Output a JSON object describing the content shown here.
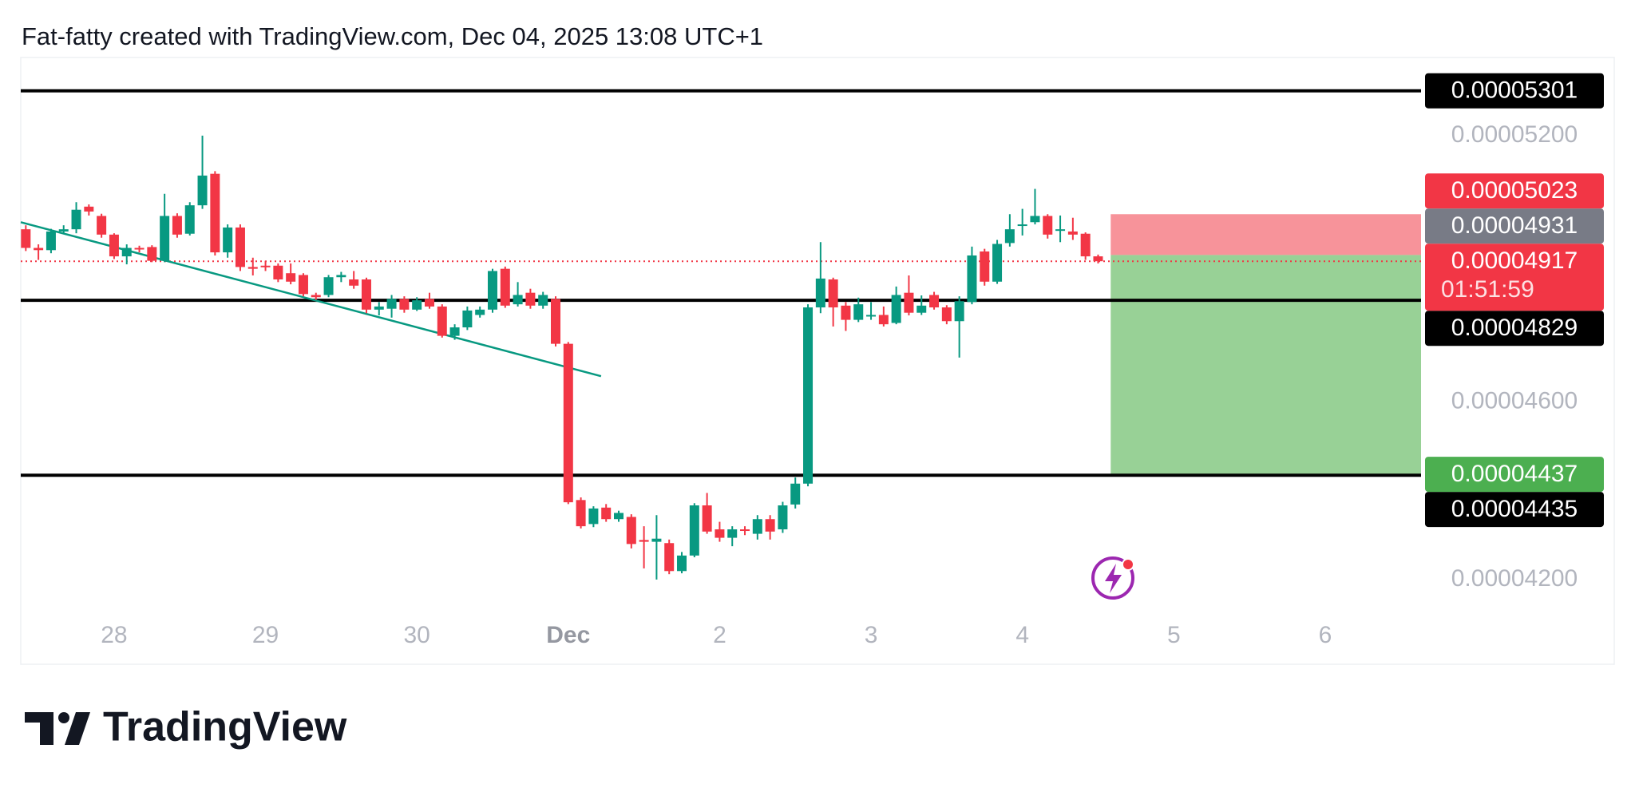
{
  "chart_data": {
    "type": "candlestick",
    "title": "Fat-fatty created with TradingView.com, Dec 04, 2025 13:08 UTC+1",
    "up_color": "#089981",
    "down_color": "#f23645",
    "candles": {
      "open": [
        4.989e-05,
        4.947e-05,
        4.942e-05,
        4.984e-05,
        4.989e-05,
        5.04e-05,
        5.019e-05,
        4.977e-05,
        4.928e-05,
        4.947e-05,
        4.949e-05,
        4.918e-05,
        5.019e-05,
        4.979e-05,
        5.043e-05,
        5.114e-05,
        4.937e-05,
        4.993e-05,
        4.904e-05,
        4.907e-05,
        4.907e-05,
        4.89e-05,
        4.886e-05,
        4.841e-05,
        4.841e-05,
        4.881e-05,
        4.876e-05,
        4.876e-05,
        4.808e-05,
        4.81e-05,
        4.832e-05,
        4.808e-05,
        4.832e-05,
        4.815e-05,
        4.749e-05,
        4.768e-05,
        4.796e-05,
        4.808e-05,
        4.9e-05,
        4.82e-05,
        4.846e-05,
        4.817e-05,
        4.832e-05,
        4.731e-05,
        4.379e-05,
        4.325e-05,
        4.362e-05,
        4.336e-05,
        4.341e-05,
        4.289e-05,
        4.285e-05,
        4.282e-05,
        4.219e-05,
        4.254e-05,
        4.367e-05,
        4.313e-05,
        4.294e-05,
        4.313e-05,
        4.303e-05,
        4.336e-05,
        4.313e-05,
        4.369e-05,
        4.416e-05,
        4.813e-05,
        4.876e-05,
        4.817e-05,
        4.785e-05,
        4.794e-05,
        4.796e-05,
        4.778e-05,
        4.846e-05,
        4.801e-05,
        4.841e-05,
        4.813e-05,
        4.782e-05,
        4.825e-05,
        4.939e-05,
        4.871e-05,
        4.958e-05,
        4.998e-05,
        5.005e-05,
        5.019e-05,
        4.989e-05,
        4.984e-05,
        4.979e-05,
        4.928e-05
      ],
      "high": [
        4.998e-05,
        4.955e-05,
        4.99e-05,
        4.998e-05,
        5.05e-05,
        5.045e-05,
        5.024e-05,
        4.98e-05,
        4.955e-05,
        4.952e-05,
        4.953e-05,
        5.069e-05,
        5.025e-05,
        5.05e-05,
        5.2e-05,
        5.12e-05,
        5e-05,
        5e-05,
        4.925e-05,
        4.918e-05,
        4.912e-05,
        4.912e-05,
        4.89e-05,
        4.846e-05,
        4.886e-05,
        4.893e-05,
        4.895e-05,
        4.88e-05,
        4.825e-05,
        4.841e-05,
        4.838e-05,
        4.836e-05,
        4.846e-05,
        4.82e-05,
        4.775e-05,
        4.815e-05,
        4.815e-05,
        4.9e-05,
        4.905e-05,
        4.87e-05,
        4.855e-05,
        4.848e-05,
        4.838e-05,
        4.735e-05,
        4.385e-05,
        4.365e-05,
        4.37e-05,
        4.355e-05,
        4.347e-05,
        4.32e-05,
        4.345e-05,
        4.29e-05,
        4.262e-05,
        4.372e-05,
        4.395e-05,
        4.33e-05,
        4.32e-05,
        4.32e-05,
        4.345e-05,
        4.345e-05,
        4.375e-05,
        4.43e-05,
        4.82e-05,
        4.96e-05,
        4.88e-05,
        4.825e-05,
        4.835e-05,
        4.825e-05,
        4.815e-05,
        4.86e-05,
        4.885e-05,
        4.84e-05,
        4.848e-05,
        4.818e-05,
        4.838e-05,
        4.95e-05,
        4.945e-05,
        4.965e-05,
        5.023e-05,
        5.035e-05,
        5.08e-05,
        5.023e-05,
        5.02e-05,
        5.015e-05,
        4.982e-05,
        4.932e-05
      ],
      "low": [
        4.94e-05,
        4.92e-05,
        4.935e-05,
        4.978e-05,
        4.98e-05,
        5.02e-05,
        4.97e-05,
        4.922e-05,
        4.91e-05,
        4.937e-05,
        4.915e-05,
        4.915e-05,
        4.97e-05,
        4.975e-05,
        5.035e-05,
        4.93e-05,
        4.925e-05,
        4.895e-05,
        4.885e-05,
        4.895e-05,
        4.87e-05,
        4.865e-05,
        4.838e-05,
        4.83e-05,
        4.836e-05,
        4.87e-05,
        4.855e-05,
        4.8e-05,
        4.795e-05,
        4.79e-05,
        4.801e-05,
        4.805e-05,
        4.81e-05,
        4.745e-05,
        4.74e-05,
        4.762e-05,
        4.79e-05,
        4.801e-05,
        4.812e-05,
        4.815e-05,
        4.81e-05,
        4.81e-05,
        4.725e-05,
        4.37e-05,
        4.315e-05,
        4.318e-05,
        4.33e-05,
        4.33e-05,
        4.27e-05,
        4.225e-05,
        4.2e-05,
        4.212e-05,
        4.214e-05,
        4.25e-05,
        4.303e-05,
        4.285e-05,
        4.275e-05,
        4.3e-05,
        4.29e-05,
        4.29e-05,
        4.305e-05,
        4.36e-05,
        4.41e-05,
        4.8e-05,
        4.77e-05,
        4.76e-05,
        4.78e-05,
        4.785e-05,
        4.77e-05,
        4.775e-05,
        4.795e-05,
        4.796e-05,
        4.808e-05,
        4.775e-05,
        4.7e-05,
        4.82e-05,
        4.862e-05,
        4.866e-05,
        4.95e-05,
        4.975e-05,
        5e-05,
        4.968e-05,
        4.96e-05,
        4.965e-05,
        4.92e-05,
        4.912e-05
      ],
      "close": [
        4.947e-05,
        4.942e-05,
        4.984e-05,
        4.989e-05,
        5.033e-05,
        5.029e-05,
        4.977e-05,
        4.928e-05,
        4.947e-05,
        4.944e-05,
        4.918e-05,
        5.019e-05,
        4.977e-05,
        5.043e-05,
        5.11e-05,
        4.937e-05,
        4.993e-05,
        4.904e-05,
        4.9e-05,
        4.904e-05,
        4.876e-05,
        4.871e-05,
        4.843e-05,
        4.836e-05,
        4.881e-05,
        4.886e-05,
        4.862e-05,
        4.808e-05,
        4.815e-05,
        4.832e-05,
        4.808e-05,
        4.829e-05,
        4.815e-05,
        4.749e-05,
        4.768e-05,
        4.806e-05,
        4.808e-05,
        4.895e-05,
        4.817e-05,
        4.841e-05,
        4.817e-05,
        4.841e-05,
        4.731e-05,
        4.374e-05,
        4.32e-05,
        4.36e-05,
        4.336e-05,
        4.35e-05,
        4.28e-05,
        4.285e-05,
        4.292e-05,
        4.219e-05,
        4.254e-05,
        4.367e-05,
        4.308e-05,
        4.294e-05,
        4.313e-05,
        4.31e-05,
        4.336e-05,
        4.308e-05,
        4.367e-05,
        4.416e-05,
        4.813e-05,
        4.878e-05,
        4.813e-05,
        4.785e-05,
        4.82e-05,
        4.796e-05,
        4.775e-05,
        4.841e-05,
        4.801e-05,
        4.817e-05,
        4.813e-05,
        4.782e-05,
        4.827e-05,
        4.93e-05,
        4.871e-05,
        4.956e-05,
        4.989e-05,
        5e-05,
        5.019e-05,
        4.977e-05,
        4.989e-05,
        4.977e-05,
        4.928e-05,
        4.917e-05
      ]
    },
    "xlim": [
      -0.4,
      110.6
    ],
    "xticks": [
      {
        "value": 7,
        "label": "28"
      },
      {
        "value": 19,
        "label": "29"
      },
      {
        "value": 31,
        "label": "30"
      },
      {
        "value": 43,
        "label": "Dec"
      },
      {
        "value": 55,
        "label": "2"
      },
      {
        "value": 67,
        "label": "3"
      },
      {
        "value": 79,
        "label": "4"
      },
      {
        "value": 91,
        "label": "5"
      },
      {
        "value": 103,
        "label": "6"
      }
    ],
    "ylim": [
      4.108e-05,
      5.376e-05
    ],
    "yticks": [
      {
        "value": 5.2e-05,
        "label": "0.00005200"
      },
      {
        "value": 4.6e-05,
        "label": "0.00004600"
      },
      {
        "value": 4.2e-05,
        "label": "0.00004200"
      }
    ],
    "levels": {
      "values": [
        5.301e-05,
        4.829e-05,
        4.435e-05
      ],
      "color": "#000000"
    },
    "trendline": {
      "x": [
        -0.4,
        45.6
      ],
      "y": [
        5.005e-05,
        4.658e-05
      ],
      "color": "#089981"
    },
    "position": {
      "start": 86,
      "stop": 5.023e-05,
      "entry": 4.931e-05,
      "target": 4.437e-05,
      "stop_color": "#f23645",
      "entry_color": "#787b86",
      "target_color": "#4caf50",
      "stop_fill": "#f7939a",
      "target_fill": "#98d196"
    },
    "last_price": {
      "value": 4.917e-05,
      "countdown": "01:51:59",
      "color": "#f23645"
    }
  },
  "footer": {
    "brand": "TradingView"
  }
}
